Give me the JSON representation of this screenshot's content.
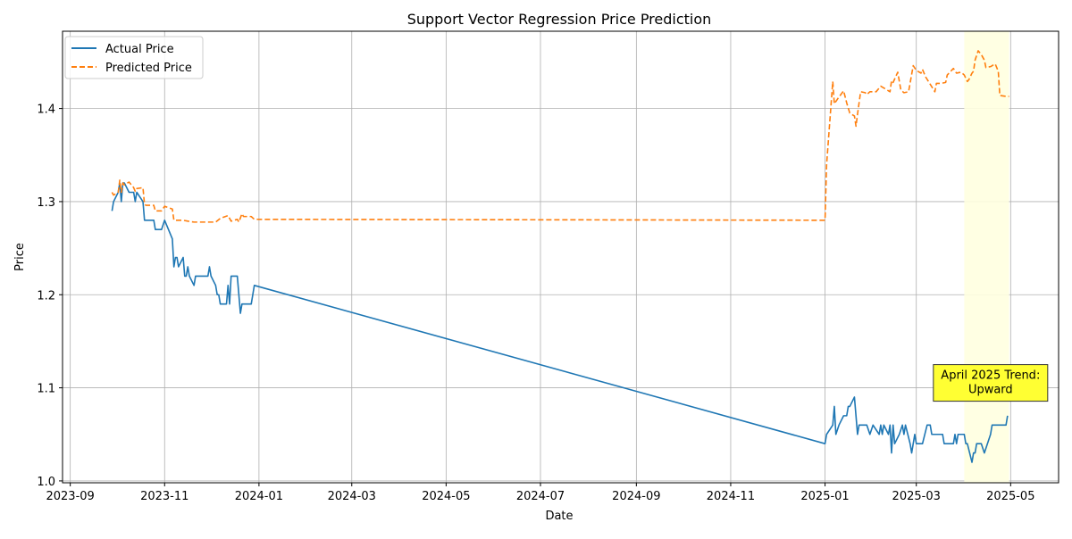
{
  "chart_data": {
    "type": "line",
    "title": "Support Vector Regression Price Prediction",
    "xlabel": "Date",
    "ylabel": "Price",
    "x_type": "date",
    "xlim": [
      "2023-08-27",
      "2025-06-01"
    ],
    "ylim": [
      0.998,
      1.483
    ],
    "x_ticks": [
      "2023-09-01",
      "2023-11-01",
      "2024-01-01",
      "2024-03-01",
      "2024-05-01",
      "2024-07-01",
      "2024-09-01",
      "2024-11-01",
      "2025-01-01",
      "2025-03-01",
      "2025-05-01"
    ],
    "x_tick_labels": [
      "2023-09",
      "2023-11",
      "2024-01",
      "2024-03",
      "2024-05",
      "2024-07",
      "2024-09",
      "2024-11",
      "2025-01",
      "2025-03",
      "2025-05"
    ],
    "y_ticks": [
      1.0,
      1.1,
      1.2,
      1.3,
      1.4
    ],
    "y_tick_labels": [
      "1.0",
      "1.1",
      "1.2",
      "1.3",
      "1.4"
    ],
    "grid": true,
    "legend": {
      "position": "top-left",
      "entries": [
        "Actual Price",
        "Predicted Price"
      ]
    },
    "highlight": {
      "x_start": "2025-04-01",
      "x_end": "2025-04-30",
      "color": "#ffffe0"
    },
    "annotation": {
      "lines": [
        "April 2025 Trend:",
        "Upward"
      ],
      "x": "2025-04-18",
      "y": 1.1,
      "color": "#ffff33"
    },
    "series": [
      {
        "name": "Actual Price",
        "color": "#1f77b4",
        "style": "solid",
        "points": [
          [
            "2023-09-28",
            1.29
          ],
          [
            "2023-09-29",
            1.3
          ],
          [
            "2023-10-02",
            1.31
          ],
          [
            "2023-10-03",
            1.32
          ],
          [
            "2023-10-04",
            1.3
          ],
          [
            "2023-10-05",
            1.32
          ],
          [
            "2023-10-06",
            1.32
          ],
          [
            "2023-10-09",
            1.31
          ],
          [
            "2023-10-12",
            1.31
          ],
          [
            "2023-10-13",
            1.3
          ],
          [
            "2023-10-14",
            1.31
          ],
          [
            "2023-10-18",
            1.3
          ],
          [
            "2023-10-19",
            1.28
          ],
          [
            "2023-10-20",
            1.28
          ],
          [
            "2023-10-25",
            1.28
          ],
          [
            "2023-10-26",
            1.27
          ],
          [
            "2023-10-30",
            1.27
          ],
          [
            "2023-11-01",
            1.28
          ],
          [
            "2023-11-06",
            1.26
          ],
          [
            "2023-11-07",
            1.23
          ],
          [
            "2023-11-08",
            1.24
          ],
          [
            "2023-11-09",
            1.24
          ],
          [
            "2023-11-10",
            1.23
          ],
          [
            "2023-11-13",
            1.24
          ],
          [
            "2023-11-14",
            1.22
          ],
          [
            "2023-11-15",
            1.22
          ],
          [
            "2023-11-16",
            1.23
          ],
          [
            "2023-11-17",
            1.22
          ],
          [
            "2023-11-20",
            1.21
          ],
          [
            "2023-11-21",
            1.22
          ],
          [
            "2023-11-27",
            1.22
          ],
          [
            "2023-11-29",
            1.22
          ],
          [
            "2023-11-30",
            1.23
          ],
          [
            "2023-12-01",
            1.22
          ],
          [
            "2023-12-04",
            1.21
          ],
          [
            "2023-12-05",
            1.2
          ],
          [
            "2023-12-06",
            1.2
          ],
          [
            "2023-12-07",
            1.19
          ],
          [
            "2023-12-11",
            1.19
          ],
          [
            "2023-12-12",
            1.21
          ],
          [
            "2023-12-13",
            1.19
          ],
          [
            "2023-12-14",
            1.22
          ],
          [
            "2023-12-15",
            1.22
          ],
          [
            "2023-12-18",
            1.22
          ],
          [
            "2023-12-19",
            1.2
          ],
          [
            "2023-12-20",
            1.18
          ],
          [
            "2023-12-21",
            1.19
          ],
          [
            "2023-12-22",
            1.19
          ],
          [
            "2023-12-27",
            1.19
          ],
          [
            "2023-12-29",
            1.21
          ],
          [
            "2025-01-01",
            1.04
          ],
          [
            "2025-01-02",
            1.05
          ],
          [
            "2025-01-06",
            1.06
          ],
          [
            "2025-01-07",
            1.08
          ],
          [
            "2025-01-08",
            1.05
          ],
          [
            "2025-01-10",
            1.06
          ],
          [
            "2025-01-13",
            1.07
          ],
          [
            "2025-01-15",
            1.07
          ],
          [
            "2025-01-16",
            1.08
          ],
          [
            "2025-01-17",
            1.08
          ],
          [
            "2025-01-20",
            1.09
          ],
          [
            "2025-01-22",
            1.05
          ],
          [
            "2025-01-23",
            1.06
          ],
          [
            "2025-01-28",
            1.06
          ],
          [
            "2025-01-30",
            1.05
          ],
          [
            "2025-02-01",
            1.06
          ],
          [
            "2025-02-05",
            1.05
          ],
          [
            "2025-02-06",
            1.06
          ],
          [
            "2025-02-07",
            1.05
          ],
          [
            "2025-02-08",
            1.06
          ],
          [
            "2025-02-11",
            1.05
          ],
          [
            "2025-02-12",
            1.06
          ],
          [
            "2025-02-13",
            1.03
          ],
          [
            "2025-02-14",
            1.06
          ],
          [
            "2025-02-15",
            1.04
          ],
          [
            "2025-02-18",
            1.05
          ],
          [
            "2025-02-20",
            1.06
          ],
          [
            "2025-02-21",
            1.05
          ],
          [
            "2025-02-22",
            1.06
          ],
          [
            "2025-02-25",
            1.04
          ],
          [
            "2025-02-26",
            1.03
          ],
          [
            "2025-02-28",
            1.05
          ],
          [
            "2025-03-01",
            1.04
          ],
          [
            "2025-03-05",
            1.04
          ],
          [
            "2025-03-08",
            1.06
          ],
          [
            "2025-03-10",
            1.06
          ],
          [
            "2025-03-11",
            1.05
          ],
          [
            "2025-03-18",
            1.05
          ],
          [
            "2025-03-19",
            1.04
          ],
          [
            "2025-03-25",
            1.04
          ],
          [
            "2025-03-26",
            1.05
          ],
          [
            "2025-03-27",
            1.04
          ],
          [
            "2025-03-28",
            1.05
          ],
          [
            "2025-04-01",
            1.05
          ],
          [
            "2025-04-02",
            1.04
          ],
          [
            "2025-04-03",
            1.04
          ],
          [
            "2025-04-06",
            1.02
          ],
          [
            "2025-04-07",
            1.03
          ],
          [
            "2025-04-08",
            1.03
          ],
          [
            "2025-04-09",
            1.04
          ],
          [
            "2025-04-12",
            1.04
          ],
          [
            "2025-04-14",
            1.03
          ],
          [
            "2025-04-18",
            1.05
          ],
          [
            "2025-04-19",
            1.06
          ],
          [
            "2025-04-24",
            1.06
          ],
          [
            "2025-04-28",
            1.06
          ],
          [
            "2025-04-29",
            1.07
          ]
        ]
      },
      {
        "name": "Predicted Price",
        "color": "#ff7f0e",
        "style": "dashed",
        "points": [
          [
            "2023-09-28",
            1.31
          ],
          [
            "2023-09-29",
            1.307
          ],
          [
            "2023-10-02",
            1.31
          ],
          [
            "2023-10-03",
            1.323
          ],
          [
            "2023-10-04",
            1.31
          ],
          [
            "2023-10-05",
            1.32
          ],
          [
            "2023-10-06",
            1.318
          ],
          [
            "2023-10-09",
            1.321
          ],
          [
            "2023-10-12",
            1.315
          ],
          [
            "2023-10-13",
            1.311
          ],
          [
            "2023-10-14",
            1.314
          ],
          [
            "2023-10-18",
            1.315
          ],
          [
            "2023-10-19",
            1.297
          ],
          [
            "2023-10-20",
            1.296
          ],
          [
            "2023-10-25",
            1.296
          ],
          [
            "2023-10-26",
            1.29
          ],
          [
            "2023-10-30",
            1.29
          ],
          [
            "2023-11-01",
            1.295
          ],
          [
            "2023-11-06",
            1.292
          ],
          [
            "2023-11-07",
            1.28
          ],
          [
            "2023-11-08",
            1.28
          ],
          [
            "2023-11-13",
            1.28
          ],
          [
            "2023-11-16",
            1.279
          ],
          [
            "2023-11-20",
            1.278
          ],
          [
            "2023-11-27",
            1.278
          ],
          [
            "2023-11-30",
            1.278
          ],
          [
            "2023-12-04",
            1.278
          ],
          [
            "2023-12-07",
            1.282
          ],
          [
            "2023-12-12",
            1.285
          ],
          [
            "2023-12-14",
            1.279
          ],
          [
            "2023-12-18",
            1.281
          ],
          [
            "2023-12-19",
            1.278
          ],
          [
            "2023-12-21",
            1.287
          ],
          [
            "2023-12-22",
            1.284
          ],
          [
            "2023-12-27",
            1.284
          ],
          [
            "2023-12-29",
            1.281
          ],
          [
            "2025-01-01",
            1.28
          ],
          [
            "2025-01-02",
            1.34
          ],
          [
            "2025-01-06",
            1.429
          ],
          [
            "2025-01-07",
            1.405
          ],
          [
            "2025-01-09",
            1.41
          ],
          [
            "2025-01-13",
            1.419
          ],
          [
            "2025-01-15",
            1.406
          ],
          [
            "2025-01-17",
            1.395
          ],
          [
            "2025-01-20",
            1.392
          ],
          [
            "2025-01-21",
            1.381
          ],
          [
            "2025-01-22",
            1.394
          ],
          [
            "2025-01-24",
            1.418
          ],
          [
            "2025-01-27",
            1.417
          ],
          [
            "2025-01-28",
            1.415
          ],
          [
            "2025-01-30",
            1.418
          ],
          [
            "2025-02-03",
            1.418
          ],
          [
            "2025-02-06",
            1.424
          ],
          [
            "2025-02-10",
            1.42
          ],
          [
            "2025-02-12",
            1.418
          ],
          [
            "2025-02-13",
            1.43
          ],
          [
            "2025-02-14",
            1.428
          ],
          [
            "2025-02-17",
            1.439
          ],
          [
            "2025-02-19",
            1.42
          ],
          [
            "2025-02-21",
            1.417
          ],
          [
            "2025-02-24",
            1.418
          ],
          [
            "2025-02-27",
            1.446
          ],
          [
            "2025-03-01",
            1.441
          ],
          [
            "2025-03-04",
            1.438
          ],
          [
            "2025-03-05",
            1.442
          ],
          [
            "2025-03-07",
            1.434
          ],
          [
            "2025-03-10",
            1.426
          ],
          [
            "2025-03-13",
            1.418
          ],
          [
            "2025-03-14",
            1.427
          ],
          [
            "2025-03-17",
            1.427
          ],
          [
            "2025-03-20",
            1.428
          ],
          [
            "2025-03-21",
            1.436
          ],
          [
            "2025-03-25",
            1.443
          ],
          [
            "2025-03-27",
            1.438
          ],
          [
            "2025-03-30",
            1.439
          ],
          [
            "2025-04-01",
            1.436
          ],
          [
            "2025-04-03",
            1.429
          ],
          [
            "2025-04-04",
            1.431
          ],
          [
            "2025-04-06",
            1.438
          ],
          [
            "2025-04-07",
            1.44
          ],
          [
            "2025-04-08",
            1.452
          ],
          [
            "2025-04-10",
            1.462
          ],
          [
            "2025-04-12",
            1.458
          ],
          [
            "2025-04-14",
            1.452
          ],
          [
            "2025-04-15",
            1.444
          ],
          [
            "2025-04-18",
            1.445
          ],
          [
            "2025-04-21",
            1.448
          ],
          [
            "2025-04-23",
            1.44
          ],
          [
            "2025-04-24",
            1.414
          ],
          [
            "2025-04-28",
            1.413
          ],
          [
            "2025-04-30",
            1.413
          ]
        ]
      }
    ]
  }
}
